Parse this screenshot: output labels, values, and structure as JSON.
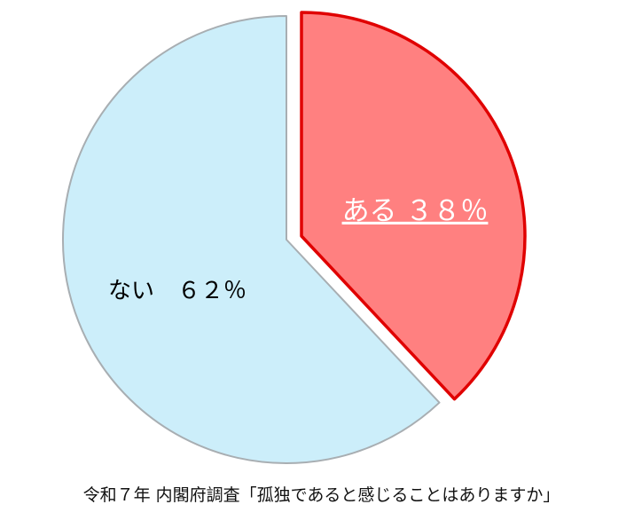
{
  "chart_data": {
    "type": "pie",
    "title": "",
    "caption": "令和７年 内閣府調査「孤独であると感じることはありますか」",
    "slices": [
      {
        "label": "ある ３８％",
        "value": 38,
        "fill": "#FF8080",
        "stroke": "#E00000",
        "exploded": true,
        "label_color": "#FFFFFF",
        "label_underlined": true
      },
      {
        "label": "ない　６２％",
        "value": 62,
        "fill": "#CCEEFA",
        "stroke": "#A8AEB2",
        "exploded": false,
        "label_color": "#000000",
        "label_underlined": false
      }
    ],
    "start_angle_deg": 0,
    "direction": "clockwise"
  }
}
